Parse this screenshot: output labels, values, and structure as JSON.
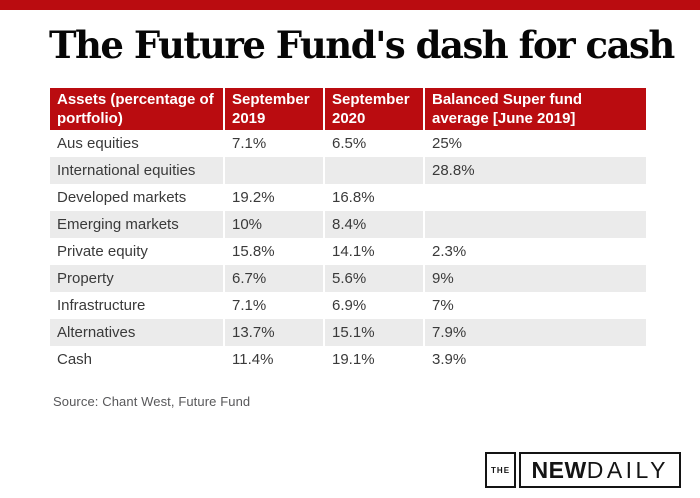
{
  "page": {
    "title": "The Future Fund's dash for cash",
    "source_note": "Source: Chant West, Future Fund"
  },
  "colors": {
    "accent_red": "#ba0c10",
    "header_bg": "#ba0c10",
    "row_stripe": "#ebebeb",
    "body_text": "#3a3a3a",
    "header_text": "#ffffff",
    "source_text": "#58585a"
  },
  "chart_data": {
    "type": "table",
    "title": "The Future Fund's dash for cash",
    "columns": [
      "Assets (percentage of portfolio)",
      "September 2019",
      "September 2020",
      "Balanced Super fund average [June 2019]"
    ],
    "rows": [
      [
        "Aus equities",
        "7.1%",
        "6.5%",
        "25%"
      ],
      [
        "International equities",
        "",
        "",
        "28.8%"
      ],
      [
        "Developed markets",
        "19.2%",
        "16.8%",
        ""
      ],
      [
        "Emerging markets",
        "10%",
        "8.4%",
        ""
      ],
      [
        "Private equity",
        "15.8%",
        "14.1%",
        "2.3%"
      ],
      [
        "Property",
        "6.7%",
        "5.6%",
        "9%"
      ],
      [
        "Infrastructure",
        "7.1%",
        "6.9%",
        "7%"
      ],
      [
        "Alternatives",
        "13.7%",
        "15.1%",
        "7.9%"
      ],
      [
        "Cash",
        "11.4%",
        "19.1%",
        "3.9%"
      ]
    ],
    "source": "Chant West, Future Fund",
    "layout": {
      "stripe_rows": "even rows shaded",
      "header_position": "top",
      "grid": "white column separators"
    }
  },
  "logo": {
    "the": "THE",
    "new": "NEW",
    "daily": "DAILY"
  }
}
